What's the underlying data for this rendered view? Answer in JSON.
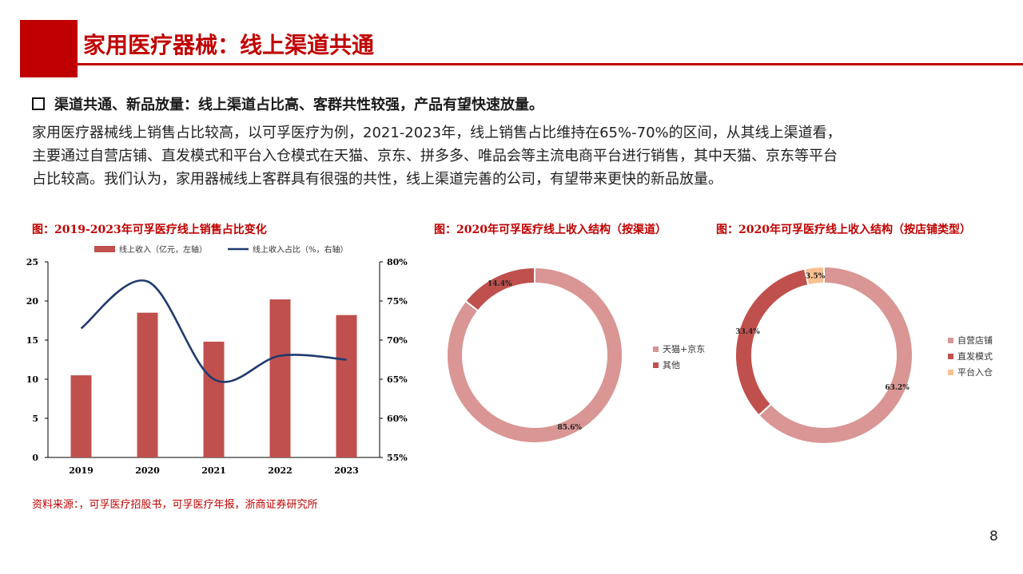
{
  "header": {
    "title": "家用医疗器械：线上渠道共通"
  },
  "bullet": {
    "text": "渠道共通、新品放量：线上渠道占比高、客群共性较强，产品有望快速放量。"
  },
  "body": {
    "lines": [
      "家用医疗器械线上销售占比较高，以可孚医疗为例，2021-2023年，线上销售占比维持在65%-70%的区间，从其线上渠道看，",
      "主要通过自营店铺、直发模式和平台入仓模式在天猫、京东、拼多多、唯品会等主流电商平台进行销售，其中天猫、京东等平台",
      "占比较高。我们认为，家用器械线上客群具有很强的共性，线上渠道完善的公司，有望带来更快的新品放量。"
    ]
  },
  "source": "资料来源：，可孚医疗招股书，可孚医疗年报，浙商证券研究所",
  "page_number": "8",
  "colors": {
    "accent": "#c00000",
    "bar": "#c0504d",
    "line": "#1f3a6e",
    "pie_main": "#d99694",
    "pie_second": "#c0504d",
    "pie_third": "#fac090"
  },
  "chart_data": [
    {
      "type": "bar",
      "title": "图：2019-2023年可孚医疗线上销售占比变化",
      "categories": [
        "2019",
        "2020",
        "2021",
        "2022",
        "2023"
      ],
      "series": [
        {
          "name": "线上收入（亿元，左轴）",
          "type": "bar",
          "axis": "left",
          "values": [
            10.5,
            18.5,
            14.8,
            20.2,
            18.2
          ]
        },
        {
          "name": "线上收入占比（%，右轴）",
          "type": "line",
          "axis": "right",
          "values": [
            71.5,
            77.5,
            65.0,
            68.0,
            67.5
          ]
        }
      ],
      "ylim": [
        0,
        25
      ],
      "y_ticks": [
        "0",
        "5",
        "10",
        "15",
        "20",
        "25"
      ],
      "y2lim": [
        55,
        80
      ],
      "y2_ticks": [
        "55%",
        "60%",
        "65%",
        "70%",
        "75%",
        "80%"
      ],
      "legend": "top"
    },
    {
      "type": "pie",
      "title": "图：2020年可孚医疗线上收入结构（按渠道）",
      "labels": [
        "天猫+京东",
        "其他"
      ],
      "values": [
        85.6,
        14.4
      ],
      "data_labels": [
        "85.6%",
        "14.4%"
      ],
      "legend": "right"
    },
    {
      "type": "pie",
      "title": "图：2020年可孚医疗线上收入结构（按店铺类型）",
      "labels": [
        "自营店铺",
        "直发模式",
        "平台入仓"
      ],
      "values": [
        63.2,
        33.4,
        3.5
      ],
      "data_labels": [
        "63.2%",
        "33.4%",
        "3.5%"
      ],
      "legend": "right"
    }
  ]
}
